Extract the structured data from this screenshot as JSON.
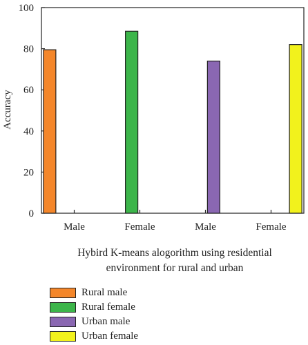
{
  "chart_data": {
    "type": "bar",
    "categories": [
      "Male",
      "Female",
      "Male",
      "Female"
    ],
    "series": [
      {
        "name": "Rural male",
        "color": "#f4862a",
        "values": [
          79.5,
          null,
          null,
          null
        ]
      },
      {
        "name": "Rural female",
        "color": "#3cb54a",
        "values": [
          null,
          88.5,
          null,
          null
        ]
      },
      {
        "name": "Urban male",
        "color": "#8a67b2",
        "values": [
          null,
          null,
          74,
          null
        ]
      },
      {
        "name": "Urban female",
        "color": "#f2f21c",
        "values": [
          null,
          null,
          null,
          82
        ]
      }
    ],
    "ylabel": "Accuracy",
    "xlabel": "Hybird K-means alogorithm using residential\nenvironment for rural and urban",
    "ylim": [
      0,
      100
    ],
    "yticks": [
      0,
      20,
      40,
      60,
      80,
      100
    ],
    "grid": false,
    "legend_position": "bottom-left"
  }
}
